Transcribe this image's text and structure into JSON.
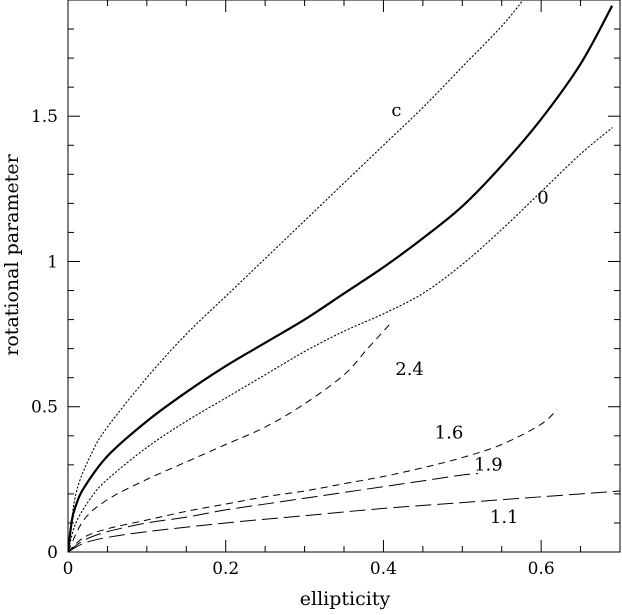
{
  "chart_data": {
    "type": "line",
    "title": "",
    "xlabel": "ellipticity",
    "ylabel": "rotational parameter",
    "xlim": [
      0,
      0.7
    ],
    "ylim": [
      0,
      1.9
    ],
    "xticks": [
      0,
      0.2,
      0.4,
      0.6
    ],
    "xtick_labels": [
      "0",
      "0.2",
      "0.4",
      "0.6"
    ],
    "yticks": [
      0,
      0.5,
      1,
      1.5
    ],
    "ytick_labels": [
      "0",
      "0.5",
      "1",
      "1.5"
    ],
    "grid": false,
    "series": [
      {
        "name": "c",
        "style": "dotted",
        "label_pos": [
          0.41,
          1.5
        ],
        "x": [
          0,
          0.01,
          0.03,
          0.05,
          0.1,
          0.15,
          0.2,
          0.25,
          0.3,
          0.35,
          0.4,
          0.45,
          0.5,
          0.55,
          0.58,
          0.6
        ],
        "y": [
          0,
          0.2,
          0.34,
          0.43,
          0.6,
          0.75,
          0.88,
          1.01,
          1.14,
          1.27,
          1.4,
          1.53,
          1.67,
          1.81,
          1.91,
          1.98
        ]
      },
      {
        "name": "",
        "style": "solid",
        "x": [
          0,
          0.005,
          0.01,
          0.02,
          0.05,
          0.1,
          0.15,
          0.2,
          0.25,
          0.3,
          0.35,
          0.4,
          0.45,
          0.5,
          0.55,
          0.6,
          0.65,
          0.69
        ],
        "y": [
          0,
          0.11,
          0.16,
          0.22,
          0.33,
          0.45,
          0.55,
          0.64,
          0.72,
          0.8,
          0.89,
          0.98,
          1.08,
          1.19,
          1.33,
          1.49,
          1.68,
          1.88
        ]
      },
      {
        "name": "0",
        "style": "dotted",
        "label_pos": [
          0.595,
          1.2
        ],
        "x": [
          0,
          0.01,
          0.03,
          0.05,
          0.1,
          0.15,
          0.2,
          0.25,
          0.3,
          0.35,
          0.4,
          0.45,
          0.5,
          0.55,
          0.6,
          0.65,
          0.69
        ],
        "y": [
          0,
          0.1,
          0.19,
          0.25,
          0.36,
          0.45,
          0.53,
          0.61,
          0.69,
          0.76,
          0.82,
          0.89,
          0.99,
          1.11,
          1.24,
          1.37,
          1.46
        ]
      },
      {
        "name": "2.4",
        "style": "dashed",
        "label_pos": [
          0.415,
          0.61
        ],
        "x": [
          0,
          0.02,
          0.05,
          0.1,
          0.15,
          0.2,
          0.25,
          0.3,
          0.35,
          0.38,
          0.41
        ],
        "y": [
          0,
          0.11,
          0.18,
          0.25,
          0.31,
          0.37,
          0.43,
          0.51,
          0.61,
          0.7,
          0.79
        ]
      },
      {
        "name": "1.6",
        "style": "dashed",
        "label_pos": [
          0.465,
          0.39
        ],
        "x": [
          0,
          0.02,
          0.05,
          0.1,
          0.15,
          0.2,
          0.25,
          0.3,
          0.35,
          0.4,
          0.45,
          0.5,
          0.55,
          0.6,
          0.62
        ],
        "y": [
          0,
          0.05,
          0.08,
          0.11,
          0.14,
          0.165,
          0.19,
          0.21,
          0.235,
          0.26,
          0.29,
          0.325,
          0.37,
          0.44,
          0.49
        ]
      },
      {
        "name": "1.9",
        "style": "longdash",
        "label_pos": [
          0.515,
          0.28
        ],
        "x": [
          0,
          0.02,
          0.05,
          0.1,
          0.15,
          0.2,
          0.25,
          0.3,
          0.35,
          0.4,
          0.45,
          0.5,
          0.52
        ],
        "y": [
          0,
          0.04,
          0.07,
          0.1,
          0.12,
          0.145,
          0.165,
          0.185,
          0.205,
          0.225,
          0.245,
          0.265,
          0.27
        ]
      },
      {
        "name": "1.1",
        "style": "longdash",
        "label_pos": [
          0.535,
          0.1
        ],
        "x": [
          0,
          0.02,
          0.05,
          0.1,
          0.2,
          0.3,
          0.4,
          0.5,
          0.6,
          0.7
        ],
        "y": [
          0,
          0.03,
          0.05,
          0.07,
          0.1,
          0.125,
          0.15,
          0.17,
          0.19,
          0.21
        ]
      }
    ]
  }
}
